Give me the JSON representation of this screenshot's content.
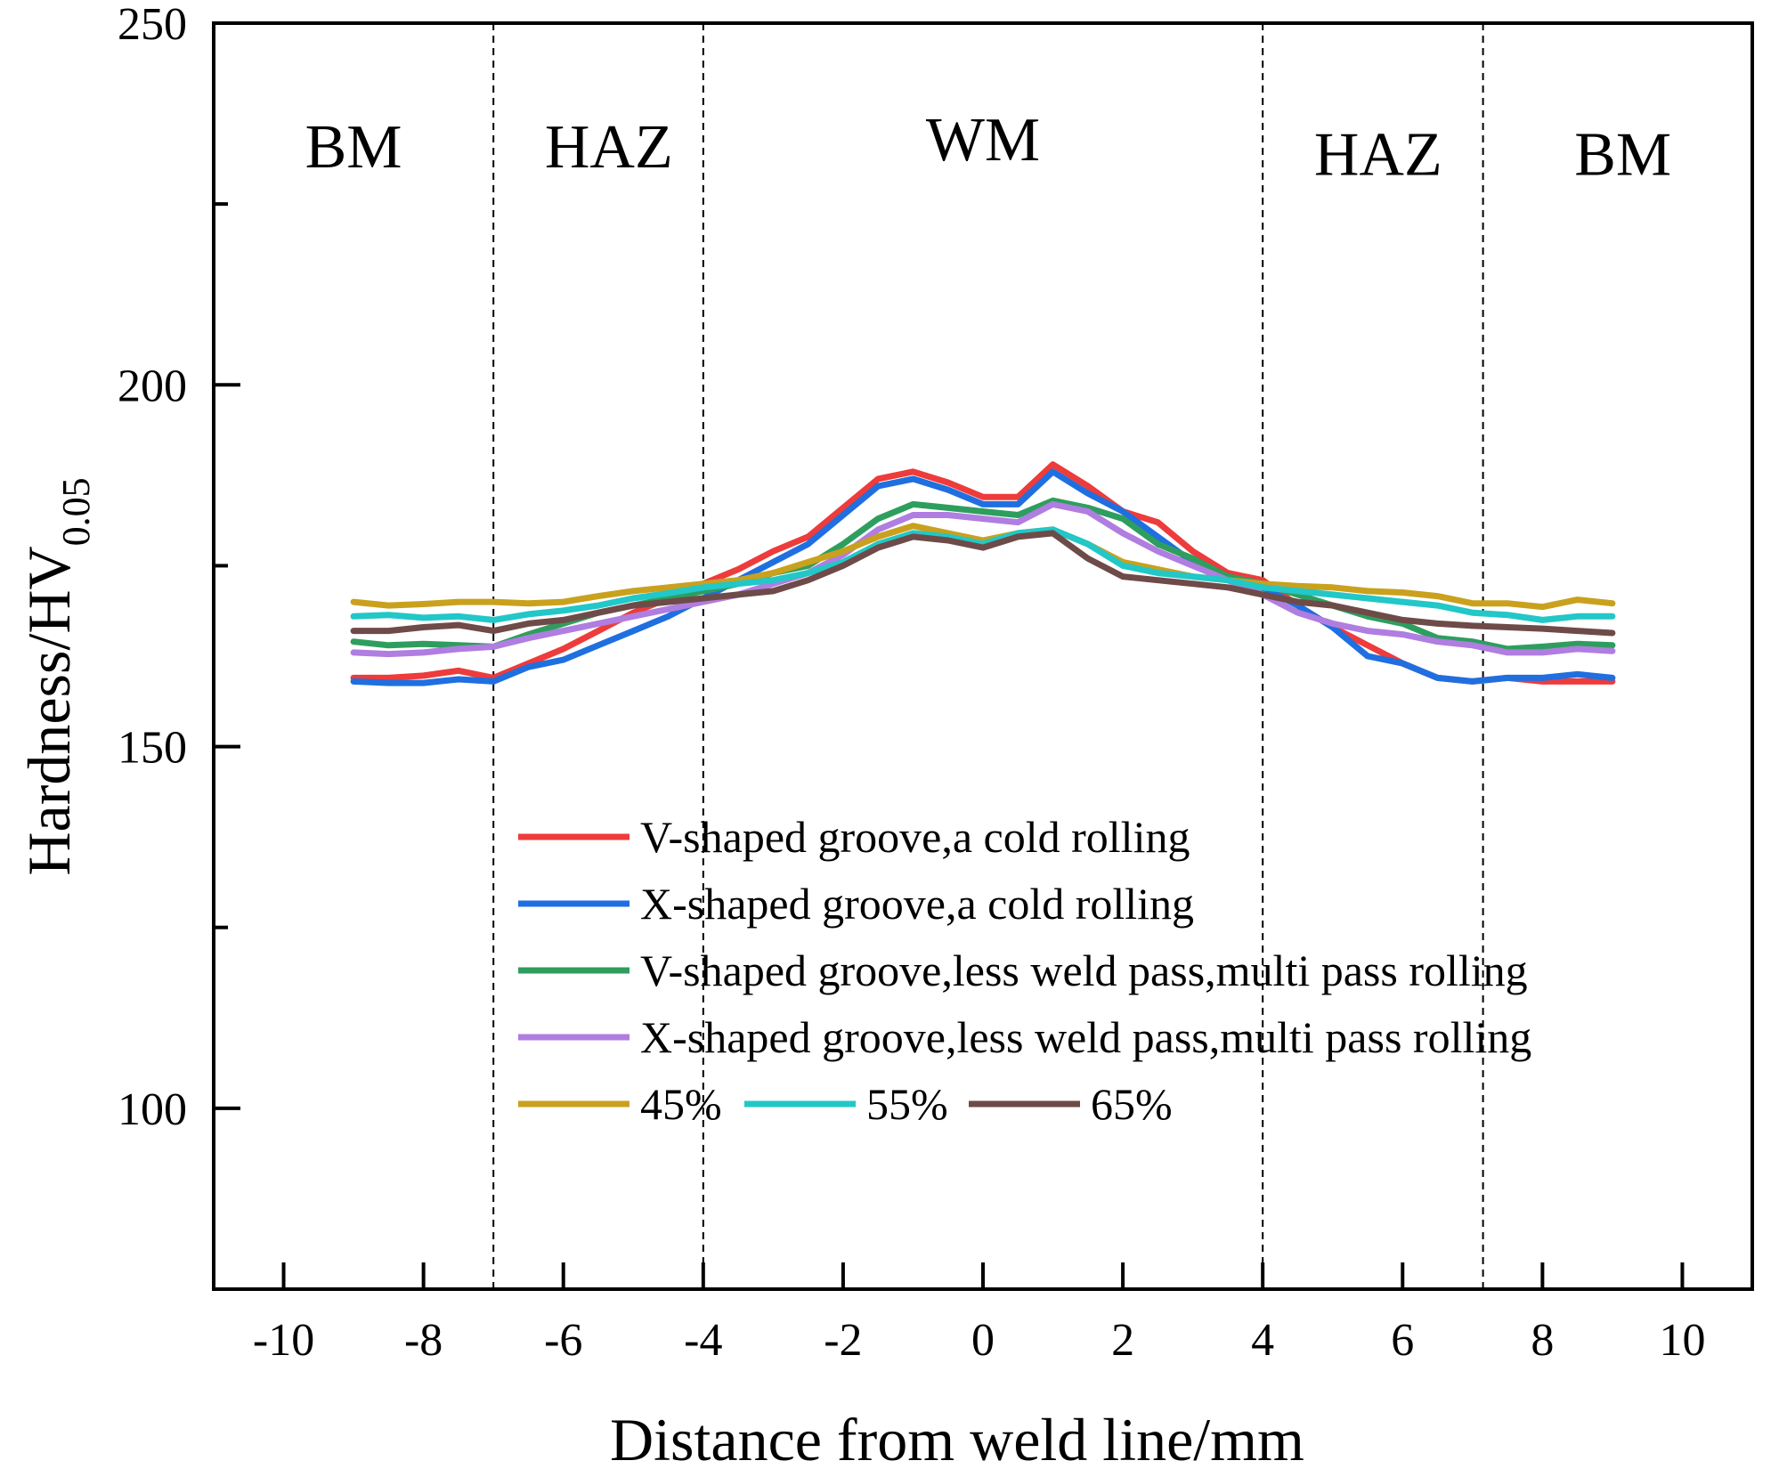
{
  "chart_data": {
    "type": "line",
    "xlabel": "Distance from weld line/mm",
    "ylabel": "Hardness/HV",
    "ylabel_sub": "0.05",
    "xlim": [
      -11,
      11
    ],
    "ylim": [
      75,
      250
    ],
    "xticks": [
      -10,
      -8,
      -6,
      -4,
      -2,
      0,
      2,
      4,
      6,
      8,
      10
    ],
    "xtick_labels": [
      "-10",
      "-8",
      "-6",
      "-4",
      "-2",
      "0",
      "2",
      "4",
      "6",
      "8",
      "10"
    ],
    "yticks": [
      100,
      150,
      200,
      250
    ],
    "ytick_labels": [
      "100",
      "150",
      "200",
      "250"
    ],
    "yminor_ticks": [
      125,
      175,
      225
    ],
    "region_dividers": [
      -7,
      -4,
      4,
      7.15
    ],
    "regions": [
      {
        "label": "BM",
        "x": -9,
        "y": 233
      },
      {
        "label": "HAZ",
        "x": -5.35,
        "y": 233
      },
      {
        "label": "WM",
        "x": 0,
        "y": 234
      },
      {
        "label": "HAZ",
        "x": 5.65,
        "y": 232
      },
      {
        "label": "BM",
        "x": 9.15,
        "y": 232
      }
    ],
    "x": [
      -9,
      -8.5,
      -8,
      -7.5,
      -7,
      -6.5,
      -6,
      -5.5,
      -5,
      -4.5,
      -4,
      -3.5,
      -3,
      -2.5,
      -2,
      -1.5,
      -1,
      -0.5,
      0,
      0.5,
      1,
      1.5,
      2,
      2.5,
      3,
      3.5,
      4,
      4.5,
      5,
      5.5,
      6,
      6.5,
      7,
      7.5,
      8,
      8.5,
      9
    ],
    "series": [
      {
        "name": "V-shaped groove,a cold rolling",
        "color": "#ee3b3b",
        "values": [
          159.5,
          159.5,
          159.8,
          160.5,
          159.5,
          161.5,
          163.5,
          166,
          168.5,
          170.5,
          172.5,
          174.5,
          177,
          179,
          183,
          187,
          188,
          186.5,
          184.5,
          184.5,
          189,
          186,
          182.5,
          181,
          177,
          174,
          173,
          169.5,
          166.5,
          164,
          161.5,
          159.5,
          159,
          159.5,
          159,
          159,
          159
        ]
      },
      {
        "name": "X-shaped groove,a cold rolling",
        "color": "#1f6fe0",
        "values": [
          159,
          158.8,
          158.8,
          159.3,
          159,
          161,
          162,
          164,
          166,
          168,
          170.5,
          173,
          175.5,
          178,
          182,
          186,
          187,
          185.5,
          183.5,
          183.5,
          188,
          185,
          182.5,
          179,
          175.5,
          173.5,
          172,
          169.5,
          166.5,
          162.5,
          161.5,
          159.5,
          159,
          159.5,
          159.5,
          160,
          159.5
        ]
      },
      {
        "name": "V-shaped groove,less weld pass,multi pass rolling",
        "color": "#2e9e5e",
        "values": [
          164.5,
          164,
          164.2,
          164,
          163.8,
          165.5,
          167,
          168.5,
          169.5,
          170.5,
          171.5,
          172.5,
          174,
          175,
          178,
          181.5,
          183.5,
          183,
          182.5,
          182,
          184,
          183,
          181.5,
          178,
          176,
          173.5,
          172.5,
          171,
          169.5,
          168,
          167,
          165,
          164.5,
          163.5,
          163.8,
          164.2,
          164
        ]
      },
      {
        "name": "X-shaped groove,less weld pass,multi pass rolling",
        "color": "#b07de0",
        "values": [
          163,
          162.8,
          163,
          163.5,
          163.8,
          165,
          166,
          167,
          168,
          169,
          170,
          171,
          172.5,
          174,
          176.5,
          180,
          182,
          182,
          181.5,
          181,
          183.5,
          182.5,
          179.5,
          177,
          175,
          173,
          171,
          168.5,
          167,
          166,
          165.5,
          164.5,
          164,
          163,
          163,
          163.5,
          163.2
        ]
      },
      {
        "name": "45%",
        "color": "#c9a11d",
        "values": [
          170,
          169.5,
          169.7,
          170,
          170,
          169.8,
          170,
          170.8,
          171.5,
          172,
          172.5,
          173,
          174,
          175.5,
          177,
          179,
          180.5,
          179.5,
          178.5,
          179.5,
          180,
          178,
          175.5,
          174.5,
          173.5,
          173,
          172.5,
          172.2,
          172,
          171.5,
          171.3,
          170.8,
          169.8,
          169.8,
          169.3,
          170.3,
          169.8
        ]
      },
      {
        "name": "55%",
        "color": "#22c7c7",
        "values": [
          168,
          168.2,
          167.8,
          168,
          167.5,
          168.3,
          168.8,
          169.5,
          170.5,
          171.2,
          172,
          172.5,
          173,
          174,
          175.5,
          178,
          179.5,
          179,
          178,
          179.5,
          180,
          178,
          175,
          174,
          173.5,
          173,
          172,
          171.5,
          171,
          170.5,
          170,
          169.5,
          168.5,
          168.2,
          167.5,
          168,
          168
        ]
      },
      {
        "name": "65%",
        "color": "#6e4b48",
        "values": [
          166,
          166,
          166.5,
          166.8,
          166,
          167,
          167.5,
          168.5,
          169.5,
          170,
          170.5,
          171,
          171.5,
          173,
          175,
          177.5,
          179,
          178.5,
          177.5,
          179,
          179.5,
          176,
          173.5,
          173,
          172.5,
          172,
          171,
          170,
          169.5,
          168.5,
          167.5,
          167,
          166.7,
          166.5,
          166.3,
          166,
          165.7
        ]
      }
    ],
    "legend_position": "lower-center"
  }
}
